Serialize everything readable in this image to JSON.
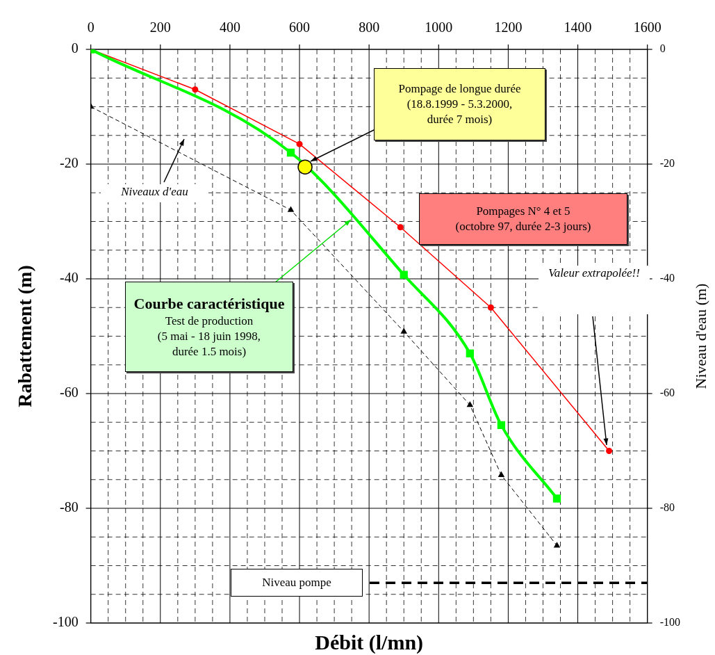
{
  "chart_data": {
    "type": "line",
    "xlabel": "Débit (l/mn)",
    "ylabel": "Rabattement (m)",
    "y2label": "Niveau d'eau (m)",
    "xlim": [
      0,
      1600
    ],
    "xticks": [
      0,
      {
        "value": 50,
        "label": null
      },
      {
        "value": 100,
        "label": null
      },
      {
        "value": 150,
        "label": null
      },
      200,
      {
        "value": 250,
        "label": null
      },
      {
        "value": 300,
        "label": null
      },
      {
        "value": 350,
        "label": null
      },
      400,
      {
        "value": 450,
        "label": null
      },
      {
        "value": 500,
        "label": null
      },
      {
        "value": 550,
        "label": null
      },
      600,
      {
        "value": 650,
        "label": null
      },
      {
        "value": 700,
        "label": null
      },
      {
        "value": 750,
        "label": null
      },
      800,
      {
        "value": 850,
        "label": null
      },
      {
        "value": 900,
        "label": null
      },
      {
        "value": 950,
        "label": null
      },
      1000,
      {
        "value": 1050,
        "label": null
      },
      {
        "value": 1100,
        "label": null
      },
      {
        "value": 1150,
        "label": null
      },
      1200,
      {
        "value": 1250,
        "label": null
      },
      {
        "value": 1300,
        "label": null
      },
      {
        "value": 1350,
        "label": null
      },
      1400,
      {
        "value": 1450,
        "label": null
      },
      {
        "value": 1500,
        "label": null
      },
      {
        "value": 1550,
        "label": null
      },
      1600
    ],
    "ylim": [
      -100,
      0
    ],
    "yticks": [
      0,
      {
        "value": -5,
        "label": null
      },
      {
        "value": -10,
        "label": null
      },
      {
        "value": -15,
        "label": null
      },
      -20,
      {
        "value": -25,
        "label": null
      },
      {
        "value": -30,
        "label": null
      },
      {
        "value": -35,
        "label": null
      },
      -40,
      {
        "value": -45,
        "label": null
      },
      {
        "value": -50,
        "label": null
      },
      {
        "value": -55,
        "label": null
      },
      -60,
      {
        "value": -65,
        "label": null
      },
      {
        "value": -70,
        "label": null
      },
      {
        "value": -75,
        "label": null
      },
      -80,
      {
        "value": -85,
        "label": null
      },
      {
        "value": -90,
        "label": null
      },
      {
        "value": -95,
        "label": null
      },
      -100
    ],
    "y2lim": [
      -100,
      0
    ],
    "y2ticks": [
      0,
      -20,
      -40,
      -60,
      -80,
      -100
    ],
    "grid": true,
    "legend": false,
    "series": [
      {
        "type": "line",
        "color": "#ff0000",
        "marker": "circle",
        "line_style": "solid",
        "x": [
          0,
          300,
          600,
          890,
          1150,
          1490
        ],
        "values": [
          0,
          -7,
          -16.5,
          -31,
          -45,
          -70
        ]
      },
      {
        "type": "line",
        "color": "#00ff00",
        "marker": "square",
        "line_style": "solid",
        "x": [
          0,
          575,
          900,
          1090,
          1180,
          1340
        ],
        "values": [
          0,
          -18,
          -39.3,
          -53,
          -65.5,
          -78.3
        ]
      },
      {
        "type": "line",
        "color": "#000000",
        "marker": "triangle",
        "line_style": "dashed",
        "x": [
          0,
          575,
          900,
          1090,
          1180,
          1340
        ],
        "values": [
          -10,
          -28,
          -49.2,
          -62,
          -74.2,
          -86.5
        ]
      },
      {
        "type": "scatter",
        "color": "#ffff00",
        "marker": "circle",
        "x": [
          616
        ],
        "values": [
          -20.5
        ]
      }
    ],
    "ref_lines": [
      {
        "axis": "y",
        "value": -93,
        "label": "Niveau pompe",
        "color": "#000000",
        "line_style": "dashed"
      }
    ],
    "annotations": [
      "Pompage de longue durée\n(18.8.1999 - 5.3.2000,\ndurée 7 mois)",
      "Pompages N° 4 et 5\n(octobre 97, durée 2-3 jours)",
      "Courbe caractéristique\nTest de production\n(5 mai - 18 juin 1998,\ndurée 1.5 mois)",
      "Niveaux d'eau",
      "Valeur extrapolée!!"
    ]
  }
}
